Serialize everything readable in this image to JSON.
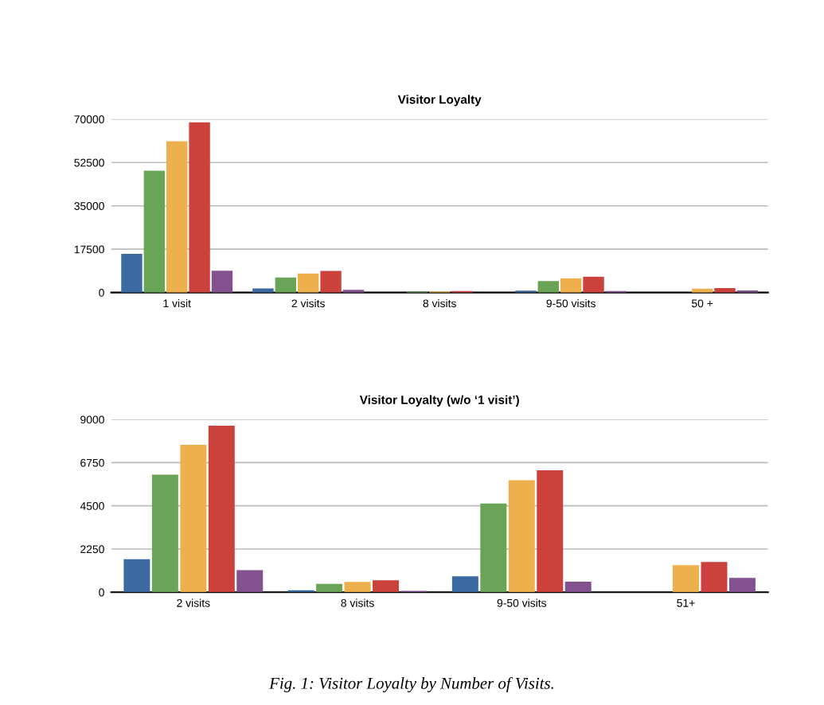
{
  "chart_data": [
    {
      "type": "bar",
      "title": "Visitor Loyalty",
      "categories": [
        "1 visit",
        "2 visits",
        "8 visits",
        "9-50 visits",
        "50 +"
      ],
      "series": [
        {
          "color": "#3a6aa0",
          "values": [
            15600,
            1700,
            null,
            800,
            0
          ]
        },
        {
          "color": "#6aa457",
          "values": [
            49200,
            6100,
            400,
            4600,
            0
          ]
        },
        {
          "color": "#eeb04c",
          "values": [
            61100,
            7700,
            500,
            5800,
            1600
          ]
        },
        {
          "color": "#cb423d",
          "values": [
            68700,
            8700,
            600,
            6400,
            1800
          ]
        },
        {
          "color": "#83528e",
          "values": [
            8800,
            1100,
            null,
            600,
            900
          ]
        }
      ],
      "ylim": [
        0,
        70000
      ],
      "yticks": [
        0,
        17500,
        35000,
        52500,
        70000
      ],
      "grid": "y"
    },
    {
      "type": "bar",
      "title": "Visitor Loyalty (w/o ‘1 visit’)",
      "categories": [
        "2 visits",
        "8 visits",
        "9-50 visits",
        "51+"
      ],
      "series": [
        {
          "color": "#3a6aa0",
          "values": [
            1720,
            100,
            830,
            0
          ]
        },
        {
          "color": "#6aa457",
          "values": [
            6130,
            440,
            4620,
            0
          ]
        },
        {
          "color": "#eeb04c",
          "values": [
            7680,
            540,
            5840,
            1410
          ]
        },
        {
          "color": "#cb423d",
          "values": [
            8680,
            620,
            6350,
            1580
          ]
        },
        {
          "color": "#83528e",
          "values": [
            1150,
            70,
            550,
            750
          ]
        }
      ],
      "ylim": [
        0,
        9000
      ],
      "yticks": [
        0,
        2250,
        4500,
        6750,
        9000
      ],
      "grid": "y",
      "annotations": [
        "Fig. 1: Visitor Loyalty by Number of Visits."
      ]
    }
  ]
}
